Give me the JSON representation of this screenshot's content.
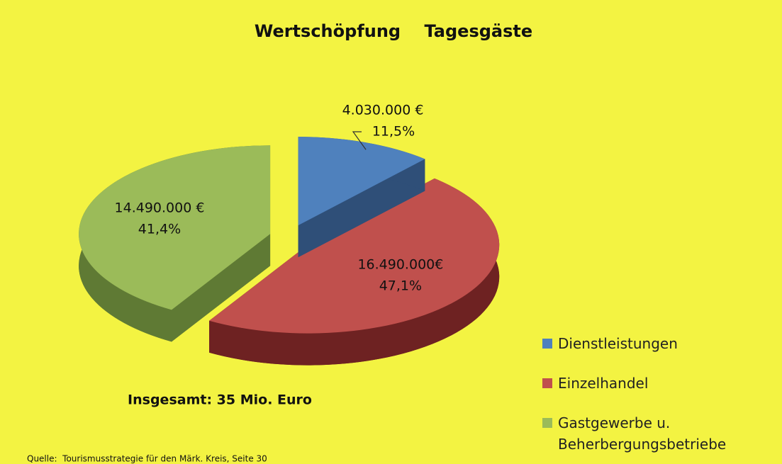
{
  "chart_data": {
    "type": "pie",
    "title": "Wertschöpfung    Tagesgäste",
    "categories": [
      "Dienstleistungen",
      "Einzelhandel",
      "Gastgewerbe u. Beherbergungsbetriebe"
    ],
    "values": [
      4030000,
      16490000,
      14490000
    ],
    "value_labels": [
      "4.030.000 €",
      "16.490.000€",
      "14.490.000 €"
    ],
    "percentages": [
      11.5,
      47.1,
      41.4
    ],
    "percentage_labels": [
      "11,5%",
      "47,1%",
      "41,4%"
    ],
    "colors": [
      "#4f81bd",
      "#c0504d",
      "#9bbb59"
    ],
    "side_colors": [
      "#2f4f78",
      "#6e2222",
      "#5f7a34"
    ],
    "legend": "right",
    "annotations": [
      "Insgesamt: 35 Mio. Euro"
    ],
    "source": "Quelle:  Tourismusstrategie für den Märk. Kreis, Seite 30"
  }
}
